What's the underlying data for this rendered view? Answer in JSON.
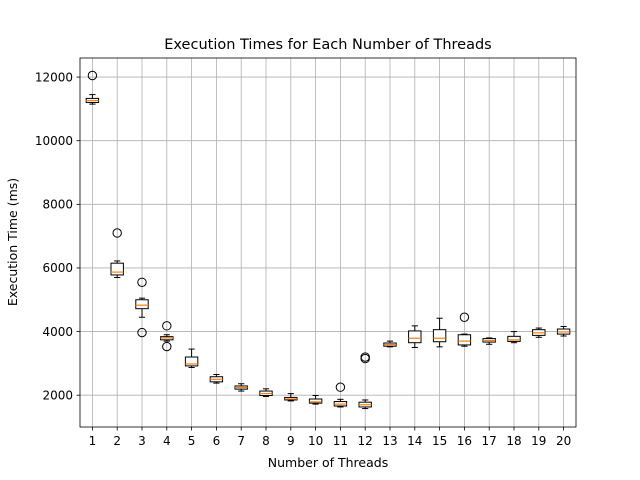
{
  "chart_data": {
    "type": "box",
    "title": "Execution Times for Each Number of Threads",
    "xlabel": "Number of Threads",
    "ylabel": "Execution Time (ms)",
    "categories": [
      "1",
      "2",
      "3",
      "4",
      "5",
      "6",
      "7",
      "8",
      "9",
      "10",
      "11",
      "12",
      "13",
      "14",
      "15",
      "16",
      "17",
      "18",
      "19",
      "20"
    ],
    "ylim": [
      1000,
      12600
    ],
    "yticks": [
      2000,
      4000,
      6000,
      8000,
      10000,
      12000
    ],
    "ytick_labels": [
      "2000",
      "4000",
      "6000",
      "8000",
      "10000",
      "12000"
    ],
    "grid": true,
    "box_fill": "#ffffff",
    "median_color": "#ff7f0e",
    "boxes": [
      {
        "whisker_low": 11150,
        "q1": 11200,
        "median": 11260,
        "q3": 11330,
        "whisker_high": 11450,
        "fliers": [
          12050
        ]
      },
      {
        "whisker_low": 5700,
        "q1": 5780,
        "median": 5870,
        "q3": 6150,
        "whisker_high": 6220,
        "fliers": [
          7100
        ]
      },
      {
        "whisker_low": 4450,
        "q1": 4720,
        "median": 4830,
        "q3": 5000,
        "whisker_high": 5050,
        "fliers": [
          5550,
          3970
        ]
      },
      {
        "whisker_low": 3700,
        "q1": 3740,
        "median": 3800,
        "q3": 3840,
        "whisker_high": 3900,
        "fliers": [
          4180,
          3530
        ]
      },
      {
        "whisker_low": 2870,
        "q1": 2920,
        "median": 2980,
        "q3": 3200,
        "whisker_high": 3450,
        "fliers": []
      },
      {
        "whisker_low": 2380,
        "q1": 2420,
        "median": 2500,
        "q3": 2580,
        "whisker_high": 2650,
        "fliers": []
      },
      {
        "whisker_low": 2130,
        "q1": 2190,
        "median": 2240,
        "q3": 2290,
        "whisker_high": 2360,
        "fliers": []
      },
      {
        "whisker_low": 1960,
        "q1": 1990,
        "median": 2050,
        "q3": 2130,
        "whisker_high": 2200,
        "fliers": []
      },
      {
        "whisker_low": 1820,
        "q1": 1850,
        "median": 1880,
        "q3": 1930,
        "whisker_high": 2050,
        "fliers": []
      },
      {
        "whisker_low": 1720,
        "q1": 1750,
        "median": 1790,
        "q3": 1880,
        "whisker_high": 1990,
        "fliers": []
      },
      {
        "whisker_low": 1630,
        "q1": 1660,
        "median": 1720,
        "q3": 1800,
        "whisker_high": 1870,
        "fliers": [
          2250
        ]
      },
      {
        "whisker_low": 1580,
        "q1": 1630,
        "median": 1700,
        "q3": 1780,
        "whisker_high": 1850,
        "fliers": [
          3200,
          3150
        ]
      },
      {
        "whisker_low": 3520,
        "q1": 3540,
        "median": 3590,
        "q3": 3640,
        "whisker_high": 3700,
        "fliers": []
      },
      {
        "whisker_low": 3500,
        "q1": 3650,
        "median": 3790,
        "q3": 4020,
        "whisker_high": 4180,
        "fliers": []
      },
      {
        "whisker_low": 3520,
        "q1": 3680,
        "median": 3790,
        "q3": 4060,
        "whisker_high": 4420,
        "fliers": []
      },
      {
        "whisker_low": 3540,
        "q1": 3580,
        "median": 3700,
        "q3": 3900,
        "whisker_high": 3920,
        "fliers": [
          4450
        ]
      },
      {
        "whisker_low": 3600,
        "q1": 3670,
        "median": 3720,
        "q3": 3780,
        "whisker_high": 3800,
        "fliers": []
      },
      {
        "whisker_low": 3650,
        "q1": 3690,
        "median": 3740,
        "q3": 3850,
        "whisker_high": 4000,
        "fliers": []
      },
      {
        "whisker_low": 3820,
        "q1": 3880,
        "median": 3960,
        "q3": 4060,
        "whisker_high": 4110,
        "fliers": []
      },
      {
        "whisker_low": 3860,
        "q1": 3920,
        "median": 3990,
        "q3": 4080,
        "whisker_high": 4160,
        "fliers": []
      }
    ]
  }
}
